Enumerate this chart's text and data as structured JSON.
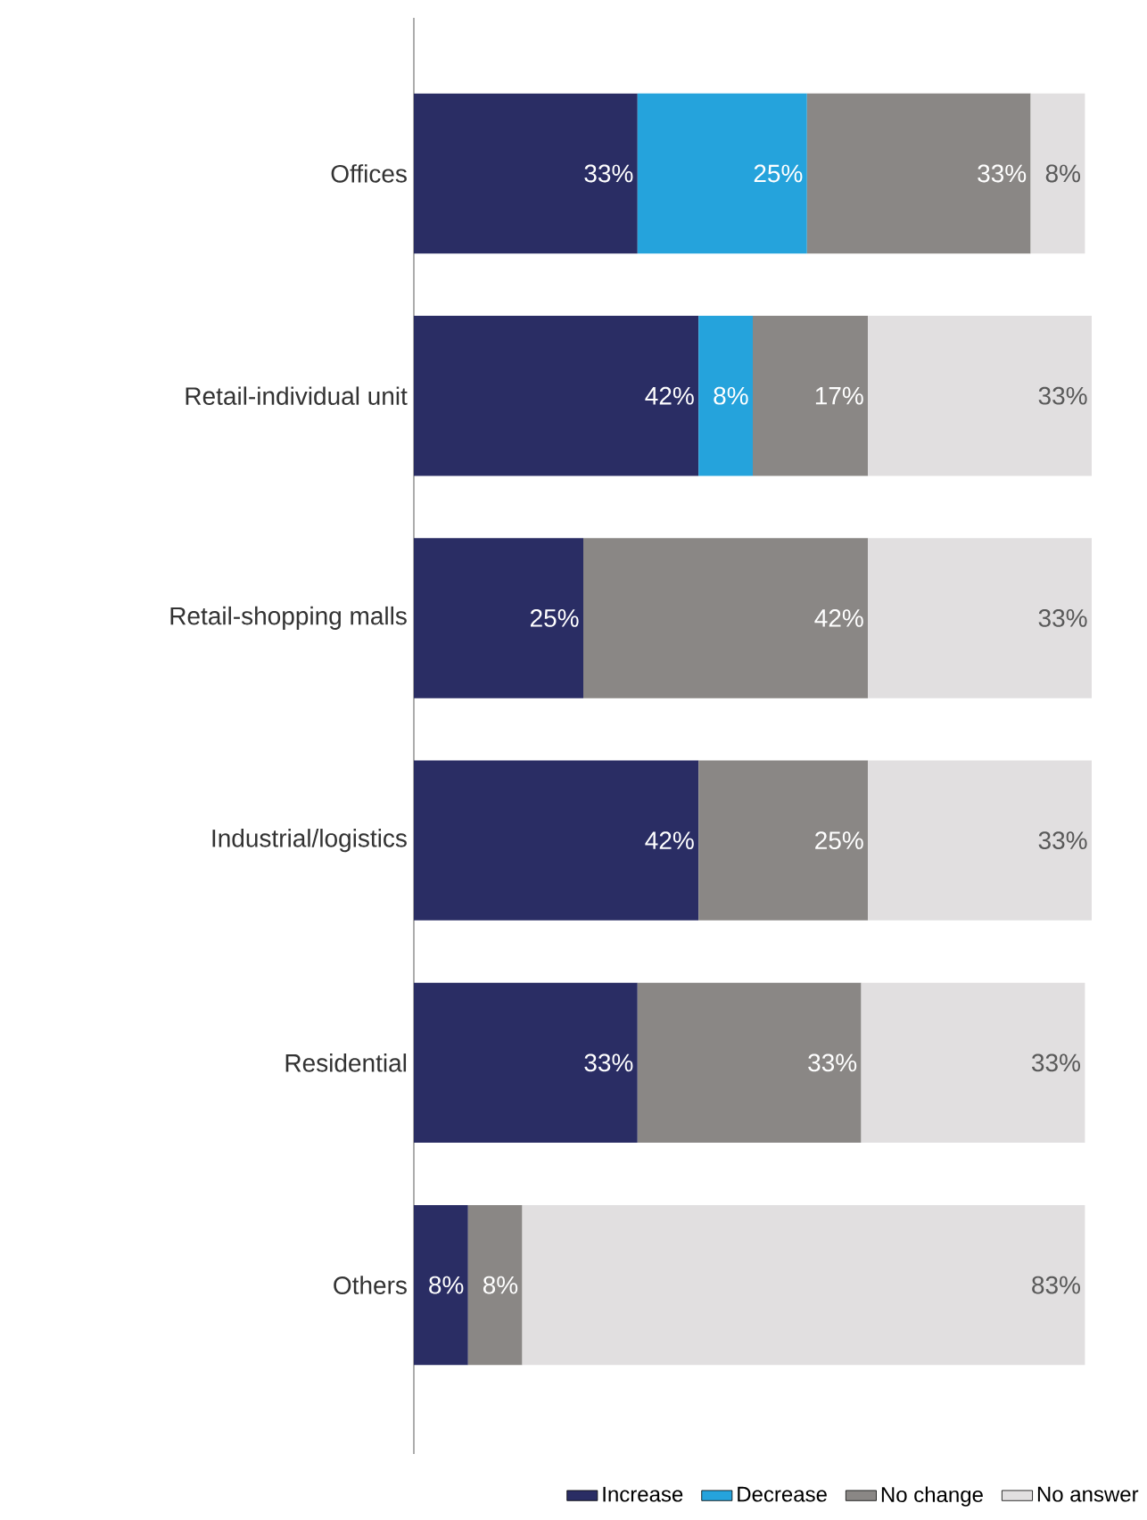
{
  "chart_data": {
    "type": "bar",
    "orientation": "horizontal",
    "stacked": true,
    "categories": [
      "Offices",
      "Retail-individual unit",
      "Retail-shopping malls",
      "Industrial/logistics",
      "Residential",
      "Others"
    ],
    "series": [
      {
        "name": "Increase",
        "color": "#2a2d64",
        "values": [
          33,
          42,
          25,
          42,
          33,
          8
        ],
        "value_labels": [
          "33%",
          "42%",
          "25%",
          "42%",
          "33%",
          "8%"
        ]
      },
      {
        "name": "Decrease",
        "color": "#25a3dc",
        "values": [
          25,
          8,
          null,
          null,
          null,
          null
        ],
        "value_labels": [
          "25%",
          "8%",
          null,
          null,
          null,
          null
        ]
      },
      {
        "name": "No change",
        "color": "#8a8785",
        "values": [
          33,
          17,
          42,
          25,
          33,
          8
        ],
        "value_labels": [
          "33%",
          "17%",
          "42%",
          "25%",
          "33%",
          "8%"
        ]
      },
      {
        "name": "No answer",
        "color": "#e1dfe0",
        "values": [
          8,
          33,
          33,
          33,
          33,
          83
        ],
        "value_labels": [
          "8%",
          "33%",
          "33%",
          "33%",
          "33%",
          "83%"
        ]
      }
    ],
    "xlim": [
      0,
      100
    ],
    "tick_labels": "y",
    "legend": "bottom"
  }
}
